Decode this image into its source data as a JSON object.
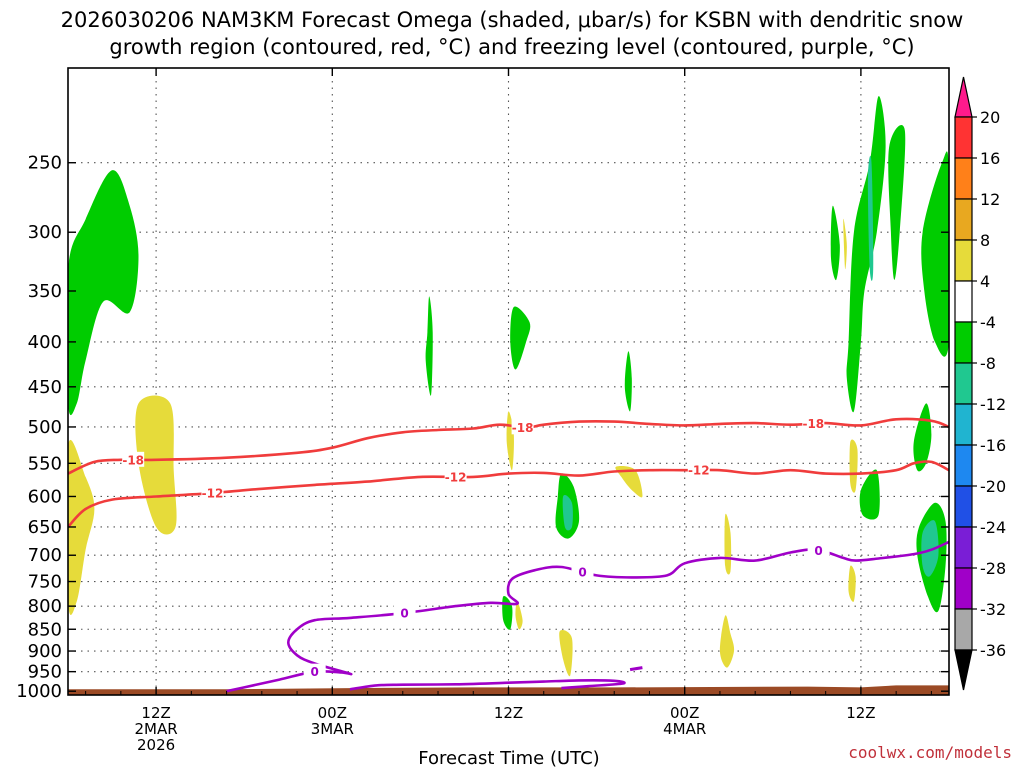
{
  "page": {
    "title_line1": "2026030206 NAM3KM Forecast Omega (shaded, μbar/s) for KSBN with dendritic snow",
    "title_line2": "growth region (contoured, red, °C) and freezing level (contoured, purple, °C)",
    "credit": "coolwx.com/models"
  },
  "chart_data": {
    "type": "heatmap",
    "xlabel": "Forecast Time (UTC)",
    "x_range_hours": [
      -5,
      45
    ],
    "y_range_hPa": [
      1010,
      195
    ],
    "y_scale": "log-pressure",
    "y_ticks": [
      250,
      300,
      350,
      400,
      450,
      500,
      550,
      600,
      650,
      700,
      750,
      800,
      850,
      900,
      950,
      1000
    ],
    "x_ticks": [
      {
        "hour": 0,
        "label": [
          "12Z",
          "2MAR",
          "2026"
        ]
      },
      {
        "hour": 10,
        "label": [
          "00Z",
          "3MAR"
        ]
      },
      {
        "hour": 20,
        "label": [
          "12Z"
        ]
      },
      {
        "hour": 30,
        "label": [
          "00Z",
          "4MAR"
        ]
      },
      {
        "hour": 40,
        "label": [
          "12Z"
        ]
      }
    ],
    "grid": true,
    "colorbar": {
      "ticks": [
        "20",
        "16",
        "12",
        "8",
        "4",
        "-4",
        "-8",
        "-12",
        "-16",
        "-20",
        "-24",
        "-28",
        "-32",
        "-36"
      ],
      "colors": [
        "#ff1a8c",
        "#ff3333",
        "#ff8019",
        "#e8a820",
        "#e6db3a",
        "#ffffff",
        "#00cc00",
        "#20c890",
        "#20b4d0",
        "#1e88f0",
        "#2050e6",
        "#7a1ed6",
        "#a000c8",
        "#a8a8a8",
        "#000000"
      ]
    },
    "omega_regions": [
      {
        "level": "-8",
        "color": "#00cc00",
        "points": [
          [
            -5,
            330
          ],
          [
            -4,
            290
          ],
          [
            -2.5,
            255
          ],
          [
            -1.5,
            280
          ],
          [
            -1,
            320
          ],
          [
            -1.5,
            370
          ],
          [
            -3,
            360
          ],
          [
            -4,
            420
          ],
          [
            -4.5,
            470
          ],
          [
            -5,
            470
          ]
        ]
      },
      {
        "level": "4",
        "color": "#e6db3a",
        "points": [
          [
            -5,
            525
          ],
          [
            -4,
            570
          ],
          [
            -3.5,
            620
          ],
          [
            -4,
            690
          ],
          [
            -4.5,
            790
          ],
          [
            -5,
            790
          ]
        ]
      },
      {
        "level": "4",
        "color": "#e6db3a",
        "points": [
          [
            -1,
            470
          ],
          [
            0.8,
            470
          ],
          [
            1,
            560
          ],
          [
            1.1,
            650
          ],
          [
            0,
            650
          ],
          [
            -1,
            550
          ]
        ]
      },
      {
        "level": "-8",
        "color": "#00cc00",
        "points": [
          [
            15.5,
            355
          ],
          [
            15.7,
            390
          ],
          [
            15.6,
            460
          ],
          [
            15.3,
            420
          ],
          [
            15.4,
            390
          ]
        ]
      },
      {
        "level": "-8",
        "color": "#00cc00",
        "points": [
          [
            20.3,
            365
          ],
          [
            21.2,
            380
          ],
          [
            21,
            400
          ],
          [
            20.4,
            430
          ],
          [
            20.1,
            400
          ]
        ]
      },
      {
        "level": "-8",
        "color": "#00cc00",
        "points": [
          [
            26.8,
            410
          ],
          [
            27.0,
            440
          ],
          [
            26.9,
            480
          ],
          [
            26.6,
            450
          ]
        ]
      },
      {
        "level": "-8",
        "color": "#00cc00",
        "points": [
          [
            23.0,
            565
          ],
          [
            23.7,
            585
          ],
          [
            24.0,
            640
          ],
          [
            23.4,
            670
          ],
          [
            22.7,
            650
          ],
          [
            22.8,
            600
          ]
        ]
      },
      {
        "level": "-12",
        "color": "#20c890",
        "points": [
          [
            23.1,
            600
          ],
          [
            23.6,
            610
          ],
          [
            23.6,
            650
          ],
          [
            23.2,
            650
          ]
        ]
      },
      {
        "level": "4",
        "color": "#e6db3a",
        "points": [
          [
            20.0,
            480
          ],
          [
            20.3,
            510
          ],
          [
            20.2,
            560
          ],
          [
            19.9,
            520
          ]
        ]
      },
      {
        "level": "4",
        "color": "#e6db3a",
        "points": [
          [
            26.1,
            555
          ],
          [
            27.2,
            560
          ],
          [
            27.6,
            600
          ],
          [
            27.0,
            590
          ],
          [
            26.4,
            570
          ]
        ]
      },
      {
        "level": "4",
        "color": "#e6db3a",
        "points": [
          [
            22.9,
            855
          ],
          [
            23.6,
            870
          ],
          [
            23.5,
            960
          ],
          [
            23.1,
            920
          ]
        ]
      },
      {
        "level": "4",
        "color": "#e6db3a",
        "points": [
          [
            32.3,
            630
          ],
          [
            32.6,
            660
          ],
          [
            32.6,
            730
          ],
          [
            32.3,
            720
          ]
        ]
      },
      {
        "level": "4",
        "color": "#e6db3a",
        "points": [
          [
            32.3,
            820
          ],
          [
            32.6,
            860
          ],
          [
            32.8,
            900
          ],
          [
            32.4,
            940
          ],
          [
            32.0,
            900
          ]
        ]
      },
      {
        "level": "-8",
        "color": "#00cc00",
        "points": [
          [
            19.7,
            780
          ],
          [
            20.2,
            800
          ],
          [
            20.1,
            850
          ],
          [
            19.7,
            830
          ]
        ]
      },
      {
        "level": "4",
        "color": "#e6db3a",
        "points": [
          [
            20.5,
            790
          ],
          [
            20.8,
            830
          ],
          [
            20.6,
            850
          ],
          [
            20.4,
            820
          ]
        ]
      },
      {
        "level": "-8",
        "color": "#00cc00",
        "points": [
          [
            39.3,
            400
          ],
          [
            39.6,
            300
          ],
          [
            40.5,
            250
          ],
          [
            41.0,
            210
          ],
          [
            41.4,
            240
          ],
          [
            40.9,
            300
          ],
          [
            40.2,
            350
          ],
          [
            40.0,
            400
          ],
          [
            39.6,
            480
          ],
          [
            39.2,
            440
          ]
        ]
      },
      {
        "level": "-12",
        "color": "#20c890",
        "points": [
          [
            40.4,
            260
          ],
          [
            40.6,
            250
          ],
          [
            40.7,
            330
          ],
          [
            40.5,
            330
          ]
        ]
      },
      {
        "level": "-8",
        "color": "#00cc00",
        "points": [
          [
            41.6,
            240
          ],
          [
            42.5,
            230
          ],
          [
            42.2,
            300
          ],
          [
            41.9,
            340
          ],
          [
            41.7,
            300
          ]
        ]
      },
      {
        "level": "-8",
        "color": "#00cc00",
        "points": [
          [
            38.4,
            280
          ],
          [
            38.8,
            310
          ],
          [
            38.6,
            340
          ],
          [
            38.3,
            320
          ]
        ]
      },
      {
        "level": "4",
        "color": "#e6db3a",
        "points": [
          [
            39.0,
            290
          ],
          [
            39.2,
            310
          ],
          [
            39.1,
            330
          ]
        ]
      },
      {
        "level": "-8",
        "color": "#00cc00",
        "points": [
          [
            43.5,
            300
          ],
          [
            44.6,
            250
          ],
          [
            45,
            255
          ],
          [
            45,
            400
          ],
          [
            44.2,
            400
          ],
          [
            43.6,
            350
          ]
        ]
      },
      {
        "level": "4",
        "color": "#e6db3a",
        "points": [
          [
            39.4,
            520
          ],
          [
            39.8,
            530
          ],
          [
            39.7,
            590
          ],
          [
            39.4,
            580
          ]
        ]
      },
      {
        "level": "4",
        "color": "#e6db3a",
        "points": [
          [
            39.4,
            720
          ],
          [
            39.7,
            740
          ],
          [
            39.6,
            790
          ],
          [
            39.3,
            770
          ]
        ]
      },
      {
        "level": "-8",
        "color": "#00cc00",
        "points": [
          [
            40.0,
            590
          ],
          [
            40.9,
            560
          ],
          [
            41.0,
            630
          ],
          [
            40.1,
            630
          ]
        ]
      },
      {
        "level": "-8",
        "color": "#00cc00",
        "points": [
          [
            43.0,
            520
          ],
          [
            43.7,
            470
          ],
          [
            44.0,
            510
          ],
          [
            43.7,
            550
          ],
          [
            43.2,
            560
          ]
        ]
      },
      {
        "level": "-8",
        "color": "#00cc00",
        "points": [
          [
            43.3,
            650
          ],
          [
            44.2,
            610
          ],
          [
            44.8,
            640
          ],
          [
            44.8,
            720
          ],
          [
            44.4,
            810
          ],
          [
            43.8,
            780
          ],
          [
            43.2,
            700
          ]
        ]
      },
      {
        "level": "-12",
        "color": "#20c890",
        "points": [
          [
            43.5,
            660
          ],
          [
            44.2,
            640
          ],
          [
            44.4,
            700
          ],
          [
            43.9,
            740
          ],
          [
            43.5,
            720
          ]
        ]
      }
    ],
    "contours": [
      {
        "name": "dendritic growth region",
        "color": "#f03c3c",
        "label": "-18",
        "label_hours": [
          -1.3,
          20.8,
          37.3
        ],
        "points": [
          [
            -5,
            565
          ],
          [
            -3.5,
            548
          ],
          [
            -2,
            545
          ],
          [
            0,
            545
          ],
          [
            4,
            542
          ],
          [
            8,
            535
          ],
          [
            10,
            528
          ],
          [
            12,
            515
          ],
          [
            14,
            507
          ],
          [
            16,
            504
          ],
          [
            18,
            502
          ],
          [
            19.5,
            497
          ],
          [
            21,
            501
          ],
          [
            22,
            497
          ],
          [
            24,
            493
          ],
          [
            26,
            493
          ],
          [
            28,
            496
          ],
          [
            30,
            498
          ],
          [
            32,
            496
          ],
          [
            34,
            495
          ],
          [
            36,
            497
          ],
          [
            38,
            495
          ],
          [
            40,
            498
          ],
          [
            42,
            490
          ],
          [
            44,
            492
          ],
          [
            45,
            500
          ]
        ]
      },
      {
        "name": "dendritic growth region",
        "color": "#f03c3c",
        "label": "-12",
        "label_hours": [
          3.2,
          17.0,
          30.8
        ],
        "points": [
          [
            -5,
            650
          ],
          [
            -4,
            620
          ],
          [
            -2.5,
            605
          ],
          [
            0,
            600
          ],
          [
            3,
            595
          ],
          [
            6,
            588
          ],
          [
            9,
            582
          ],
          [
            12,
            577
          ],
          [
            15,
            570
          ],
          [
            18,
            570
          ],
          [
            20,
            565
          ],
          [
            22,
            564
          ],
          [
            24,
            568
          ],
          [
            26,
            562
          ],
          [
            28,
            560
          ],
          [
            30,
            560
          ],
          [
            32,
            560
          ],
          [
            34,
            565
          ],
          [
            36,
            560
          ],
          [
            38,
            565
          ],
          [
            40,
            565
          ],
          [
            42,
            560
          ],
          [
            43,
            550
          ],
          [
            44,
            548
          ],
          [
            45,
            560
          ]
        ]
      },
      {
        "name": "freezing level",
        "color": "#a000c8",
        "label": "0",
        "label_hours": [
          9.0,
          14.1,
          24.2,
          37.6
        ],
        "points": [
          [
            4,
            1000
          ],
          [
            5,
            990
          ],
          [
            7,
            970
          ],
          [
            9,
            950
          ],
          [
            10.5,
            952
          ],
          [
            11,
            955
          ],
          [
            9,
            930
          ],
          [
            8,
            910
          ],
          [
            7.5,
            880
          ],
          [
            8,
            850
          ],
          [
            9,
            830
          ],
          [
            11,
            825
          ],
          [
            14,
            815
          ],
          [
            17,
            800
          ],
          [
            19,
            793
          ],
          [
            20.5,
            795
          ],
          [
            20.0,
            775
          ],
          [
            20.2,
            745
          ],
          [
            21.5,
            728
          ],
          [
            23,
            722
          ],
          [
            25,
            738
          ],
          [
            27,
            742
          ],
          [
            29,
            738
          ],
          [
            30,
            715
          ],
          [
            32,
            705
          ],
          [
            34,
            710
          ],
          [
            36,
            695
          ],
          [
            37.5,
            690
          ],
          [
            39,
            705
          ],
          [
            39.7,
            710
          ],
          [
            41,
            706
          ],
          [
            43,
            698
          ],
          [
            44,
            690
          ],
          [
            45,
            676
          ]
        ]
      },
      {
        "name": "freezing level",
        "color": "#a000c8",
        "label": "0",
        "label_hours": [],
        "points": [
          [
            11,
            995
          ],
          [
            12.5,
            985
          ],
          [
            14,
            983
          ],
          [
            17,
            982
          ],
          [
            20,
            978
          ],
          [
            22,
            975
          ],
          [
            24,
            972
          ],
          [
            26,
            973
          ],
          [
            26.5,
            980
          ],
          [
            24.5,
            987
          ],
          [
            23,
            992
          ]
        ]
      }
    ],
    "terrain": {
      "color": "#9b4a25",
      "points": [
        [
          -5,
          995
        ],
        [
          4,
          995
        ],
        [
          11,
          992
        ],
        [
          18,
          990
        ],
        [
          26,
          990
        ],
        [
          37,
          988
        ],
        [
          40,
          990
        ],
        [
          42,
          985
        ],
        [
          45,
          985
        ],
        [
          45,
          1010
        ],
        [
          -5,
          1010
        ]
      ]
    },
    "small_freezing_blob": {
      "points": [
        [
          26.9,
          945
        ],
        [
          27.6,
          940
        ]
      ]
    }
  }
}
